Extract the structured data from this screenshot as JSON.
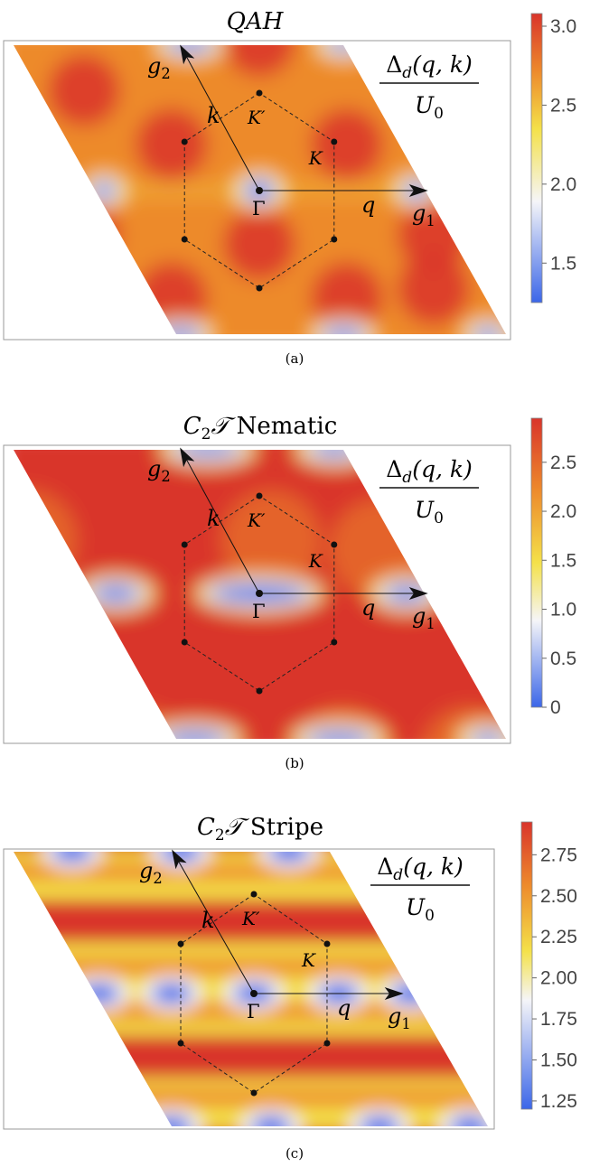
{
  "chart_data": [
    {
      "type": "heatmap",
      "title": "QAH",
      "caption": "(a)",
      "zlabel_numerator": "Δd(q, k)",
      "zlabel_denominator": "U0",
      "x_axis_label": "q",
      "y_axis_label": "k",
      "vector_labels": [
        "g1",
        "g2"
      ],
      "points": [
        "Γ",
        "K",
        "K′"
      ],
      "colorbar": {
        "min": 1.25,
        "max": 3.08,
        "ticks": [
          "1.5",
          "2.0",
          "2.5",
          "3.0"
        ],
        "tick_values": [
          1.5,
          2.0,
          2.5,
          3.0
        ]
      },
      "minimum_value": 1.25,
      "maximum_value": 3.08
    },
    {
      "type": "heatmap",
      "title": "C2𝒯 Nematic",
      "caption": "(b)",
      "zlabel_numerator": "Δd(q, k)",
      "zlabel_denominator": "U0",
      "x_axis_label": "q",
      "y_axis_label": "k",
      "vector_labels": [
        "g1",
        "g2"
      ],
      "points": [
        "Γ",
        "K",
        "K′"
      ],
      "colorbar": {
        "min": 0,
        "max": 2.95,
        "ticks": [
          "0",
          "0.5",
          "1.0",
          "1.5",
          "2.0",
          "2.5"
        ],
        "tick_values": [
          0,
          0.5,
          1.0,
          1.5,
          2.0,
          2.5
        ]
      },
      "minimum_value": 0,
      "maximum_value": 2.95
    },
    {
      "type": "heatmap",
      "title": "C2𝒯 Stripe",
      "caption": "(c)",
      "zlabel_numerator": "Δd(q, k)",
      "zlabel_denominator": "U0",
      "x_axis_label": "q",
      "y_axis_label": "k",
      "vector_labels": [
        "g1",
        "g2"
      ],
      "points": [
        "Γ",
        "K",
        "K′"
      ],
      "colorbar": {
        "min": 1.2,
        "max": 2.95,
        "ticks": [
          "1.25",
          "1.50",
          "1.75",
          "2.00",
          "2.25",
          "2.50",
          "2.75"
        ],
        "tick_values": [
          1.25,
          1.5,
          1.75,
          2.0,
          2.25,
          2.5,
          2.75
        ]
      },
      "minimum_value": 1.2,
      "maximum_value": 2.95
    }
  ],
  "colors": {
    "red": "#d9342b",
    "orange": "#ed8a2c",
    "yellow": "#f4e14a",
    "white": "#f5f5f8",
    "blue": "#3b66e8"
  }
}
